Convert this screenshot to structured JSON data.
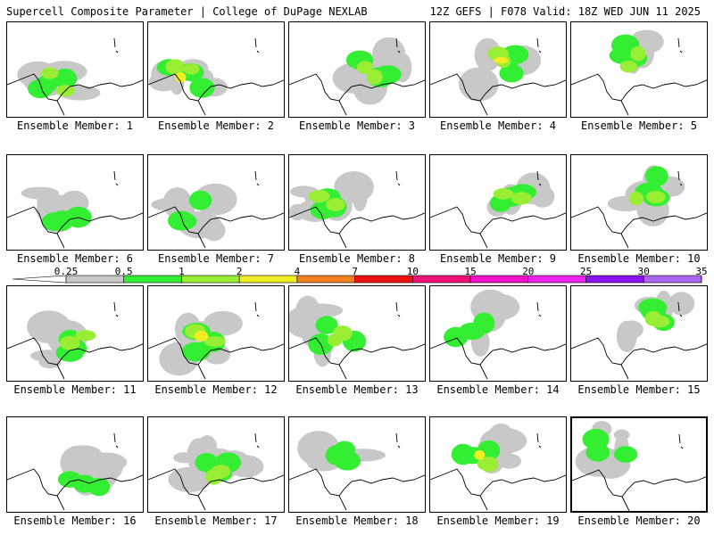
{
  "header": {
    "left": "Supercell Composite Parameter | College of DuPage NEXLAB",
    "right": "12Z GEFS | F078 Valid: 18Z WED JUN 11 2025"
  },
  "member_label_prefix": "Ensemble Member: ",
  "panels": [
    {
      "member": "1",
      "intensity": 2
    },
    {
      "member": "2",
      "intensity": 4
    },
    {
      "member": "3",
      "intensity": 2
    },
    {
      "member": "4",
      "intensity": 3
    },
    {
      "member": "5",
      "intensity": 2
    },
    {
      "member": "6",
      "intensity": 1
    },
    {
      "member": "7",
      "intensity": 1
    },
    {
      "member": "8",
      "intensity": 2
    },
    {
      "member": "9",
      "intensity": 2
    },
    {
      "member": "10",
      "intensity": 2
    },
    {
      "member": "11",
      "intensity": 2
    },
    {
      "member": "12",
      "intensity": 3
    },
    {
      "member": "13",
      "intensity": 2
    },
    {
      "member": "14",
      "intensity": 1
    },
    {
      "member": "15",
      "intensity": 2
    },
    {
      "member": "16",
      "intensity": 1
    },
    {
      "member": "17",
      "intensity": 2
    },
    {
      "member": "18",
      "intensity": 1
    },
    {
      "member": "19",
      "intensity": 3
    },
    {
      "member": "20",
      "intensity": 1
    }
  ],
  "selected_member": "20",
  "colorbar": {
    "levels": [
      "0.25",
      "0.5",
      "1",
      "2",
      "4",
      "7",
      "10",
      "15",
      "20",
      "25",
      "30",
      "35"
    ],
    "colors": [
      "#c8c8c8",
      "#33ee33",
      "#99ee33",
      "#eeee22",
      "#f08020",
      "#ee1111",
      "#ee1177",
      "#ee11cc",
      "#ee22ee",
      "#8811ee",
      "#aa66ee",
      "#22eeee"
    ]
  },
  "map_colors": {
    "field_light": "#c8c8c8",
    "field_green": "#33ee33",
    "field_lightgreen": "#99ee33",
    "field_yellow": "#eeee22",
    "coastline": "#000000"
  }
}
